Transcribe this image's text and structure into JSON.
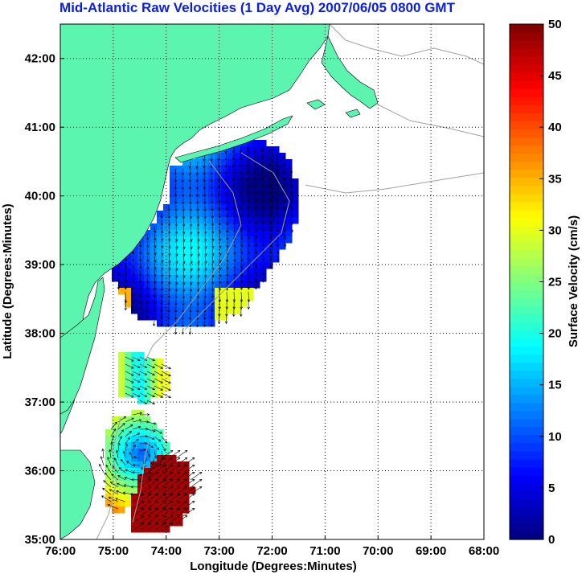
{
  "title": "Mid-Atlantic Raw Velocities (1 Day Avg) 2007/06/05 0800 GMT",
  "axes": {
    "xlabel": "Longitude (Degrees:Minutes)",
    "ylabel": "Latitude (Degrees:Minutes)",
    "xticks": [
      "76:00",
      "75:00",
      "74:00",
      "73:00",
      "72:00",
      "71:00",
      "70:00",
      "69:00",
      "68:00"
    ],
    "yticks": [
      "42:00",
      "41:00",
      "40:00",
      "39:00",
      "38:00",
      "37:00",
      "36:00",
      "35:00"
    ],
    "xrange": [
      -76,
      -68
    ],
    "yrange": [
      35,
      42.5
    ],
    "grid": true
  },
  "colorbar": {
    "label": "Surface Velocity (cm/s)",
    "ticks": [
      "50",
      "45",
      "40",
      "35",
      "30",
      "25",
      "20",
      "15",
      "10",
      "5",
      "0"
    ],
    "range": [
      0,
      50
    ],
    "colormap": "jet"
  },
  "colors": {
    "land": "#5cf5b0",
    "ocean": "#ffffff",
    "title": "#0a1ee6",
    "grid": "#000000",
    "bathymetry": "#a0a0a0",
    "arrows": "#000000"
  }
}
